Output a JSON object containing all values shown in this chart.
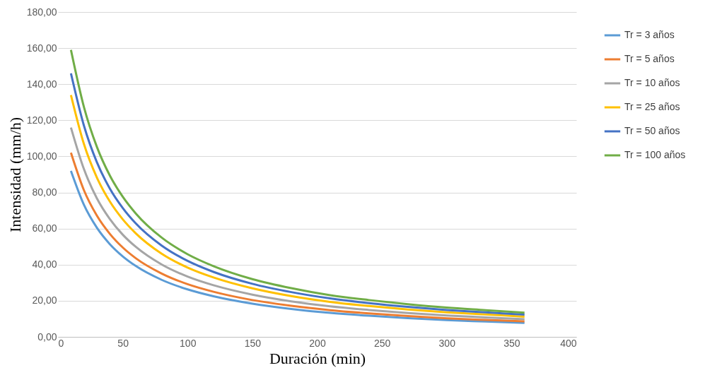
{
  "chart_data": {
    "type": "line",
    "xlabel": "Duración (min)",
    "ylabel": "Intensidad (mm/h)",
    "x": [
      10,
      20,
      30,
      40,
      50,
      60,
      80,
      100,
      120,
      150,
      180,
      210,
      240,
      270,
      300,
      330,
      360
    ],
    "xlim": [
      0,
      400
    ],
    "xticks": [
      0,
      50,
      100,
      150,
      200,
      250,
      300,
      350,
      400
    ],
    "ylim": [
      0,
      180
    ],
    "yticks": [
      {
        "value": 0,
        "label": "0,00"
      },
      {
        "value": 20,
        "label": "20,00"
      },
      {
        "value": 40,
        "label": "40,00"
      },
      {
        "value": 60,
        "label": "60,00"
      },
      {
        "value": 80,
        "label": "80,00"
      },
      {
        "value": 100,
        "label": "100,00"
      },
      {
        "value": 120,
        "label": "120,00"
      },
      {
        "value": 140,
        "label": "140,00"
      },
      {
        "value": 160,
        "label": "160,00"
      },
      {
        "value": 180,
        "label": "180,00"
      }
    ],
    "grid": "y",
    "legend": "right",
    "marker": "none",
    "line_style": "solid",
    "series": [
      {
        "name": "Tr = 3 años",
        "color": "#5b9bd5",
        "values": [
          92,
          73.2,
          60.5,
          51.4,
          44.6,
          39.3,
          31.6,
          26.3,
          22.5,
          18.4,
          15.5,
          13.3,
          11.7,
          10.4,
          9.3,
          8.5,
          7.7
        ]
      },
      {
        "name": "Tr = 5 años",
        "color": "#ed7d31",
        "values": [
          102,
          81.3,
          67.2,
          57.1,
          49.5,
          43.6,
          35.1,
          29.2,
          25.0,
          20.4,
          17.2,
          14.8,
          13.0,
          11.5,
          10.3,
          9.4,
          8.6
        ]
      },
      {
        "name": "Tr = 10 años",
        "color": "#a5a5a5",
        "values": [
          116,
          93.0,
          76.8,
          65.3,
          56.6,
          49.9,
          40.1,
          33.4,
          28.6,
          23.4,
          19.7,
          16.9,
          14.9,
          13.2,
          11.8,
          10.8,
          9.8
        ]
      },
      {
        "name": "Tr = 25 años",
        "color": "#ffc000",
        "values": [
          134,
          106.9,
          88.3,
          75.0,
          65.1,
          57.4,
          46.1,
          38.4,
          32.9,
          26.9,
          22.6,
          19.4,
          17.1,
          15.2,
          13.6,
          12.4,
          11.2
        ]
      },
      {
        "name": "Tr = 50 años",
        "color": "#4472c4",
        "values": [
          146,
          117.1,
          96.8,
          82.2,
          71.4,
          62.9,
          50.6,
          42.1,
          36.0,
          29.4,
          24.8,
          21.3,
          18.7,
          16.6,
          14.9,
          13.6,
          12.3
        ]
      },
      {
        "name": "Tr = 100 años",
        "color": "#70ad47",
        "values": [
          159,
          127.4,
          105.3,
          89.4,
          77.6,
          68.4,
          55.0,
          45.8,
          39.2,
          32.0,
          27.0,
          23.1,
          20.4,
          18.1,
          16.2,
          14.8,
          13.4
        ]
      }
    ]
  }
}
